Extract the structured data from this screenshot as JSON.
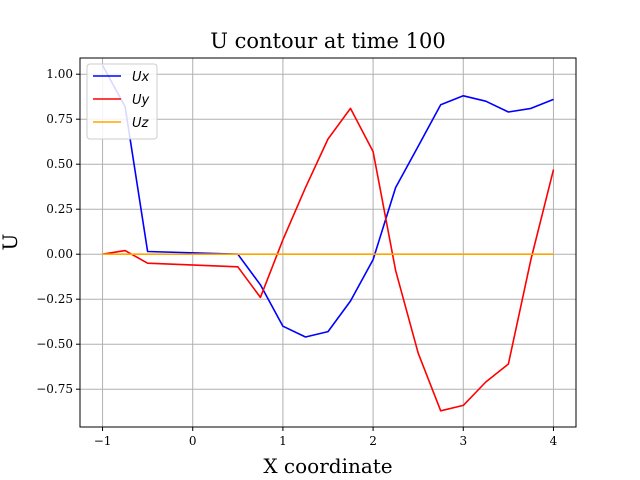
{
  "chart_data": {
    "type": "line",
    "title": "U contour at time 100",
    "xlabel": "X coordinate",
    "ylabel": "U",
    "xlim": [
      -1.25,
      4.25
    ],
    "ylim": [
      -0.96,
      1.09
    ],
    "grid": true,
    "legend_position": "top-left",
    "x_ticks": [
      -1,
      0,
      1,
      2,
      3,
      4
    ],
    "x_tick_labels": [
      "−1",
      "0",
      "1",
      "2",
      "3",
      "4"
    ],
    "y_ticks": [
      1.0,
      0.75,
      0.5,
      0.25,
      0.0,
      -0.25,
      -0.5,
      -0.75
    ],
    "y_tick_labels": [
      "1.00",
      "0.75",
      "0.50",
      "0.25",
      "0.00",
      "−0.25",
      "−0.50",
      "−0.75"
    ],
    "series": [
      {
        "name": "Ux",
        "color": "#0000ff",
        "x": [
          -1.0,
          -0.75,
          -0.5,
          0.5,
          0.75,
          1.0,
          1.25,
          1.5,
          1.75,
          2.0,
          2.25,
          2.5,
          2.75,
          3.0,
          3.25,
          3.5,
          3.75,
          4.0
        ],
        "y": [
          1.05,
          0.82,
          0.015,
          0.0,
          -0.17,
          -0.4,
          -0.46,
          -0.43,
          -0.26,
          -0.03,
          0.37,
          0.6,
          0.83,
          0.88,
          0.85,
          0.79,
          0.81,
          0.86
        ]
      },
      {
        "name": "Uy",
        "color": "#ff0000",
        "x": [
          -1.0,
          -0.75,
          -0.5,
          0.5,
          0.75,
          1.0,
          1.25,
          1.5,
          1.75,
          2.0,
          2.25,
          2.5,
          2.75,
          3.0,
          3.25,
          3.5,
          3.75,
          4.0
        ],
        "y": [
          0.0,
          0.02,
          -0.05,
          -0.07,
          -0.24,
          0.08,
          0.37,
          0.64,
          0.81,
          0.57,
          -0.09,
          -0.55,
          -0.87,
          -0.84,
          -0.71,
          -0.61,
          -0.03,
          0.47
        ]
      },
      {
        "name": "Uz",
        "color": "#ffa500",
        "x": [
          -1.0,
          4.0
        ],
        "y": [
          0.0,
          0.0
        ]
      }
    ]
  }
}
